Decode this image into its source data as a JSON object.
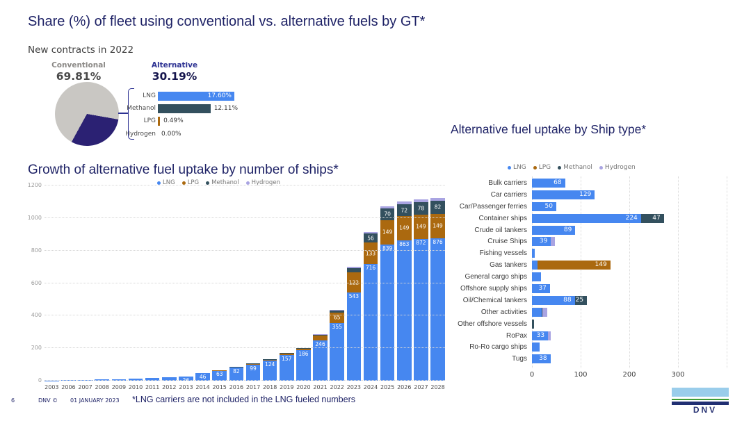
{
  "page": {
    "title": "Share (%) of fleet using conventional vs. alternative fuels by GT*",
    "footer": {
      "page_number": "6",
      "copyright": "DNV ©",
      "date": "01 JANUARY 2023",
      "note": "*LNG carriers are not included in the LNG fueled numbers"
    },
    "logo_text": "DNV"
  },
  "colors": {
    "lng": "#4687f0",
    "lpg": "#ab690f",
    "methanol": "#33505e",
    "hydrogen": "#a9a4e2",
    "conventional": "#c9c7c3",
    "alternative": "#2b2173",
    "heading": "#1e2266"
  },
  "new_contracts": {
    "subtitle": "New contracts in 2022",
    "conventional_label": "Conventional",
    "conventional_value": "69.81%",
    "alternative_label": "Alternative",
    "alternative_value": "30.19%",
    "pie": {
      "conventional_pct": 69.81,
      "alternative_pct": 30.19
    },
    "breakdown": [
      {
        "label": "LNG",
        "value": "17.60%",
        "pct": 17.6,
        "series": "lng",
        "inside": true
      },
      {
        "label": "Methanol",
        "value": "12.11%",
        "pct": 12.11,
        "series": "methanol",
        "inside": false
      },
      {
        "label": "LPG",
        "value": "0.49%",
        "pct": 0.49,
        "series": "lpg",
        "inside": false
      },
      {
        "label": "Hydrogen",
        "value": "0.00%",
        "pct": 0.0,
        "series": "hydrogen",
        "inside": false
      }
    ]
  },
  "chart_data": [
    {
      "id": "growth",
      "type": "bar",
      "stacked": true,
      "orientation": "vertical",
      "title": "Growth of alternative fuel uptake by number of ships*",
      "legend": [
        "LNG",
        "LPG",
        "Methanol",
        "Hydrogen"
      ],
      "legend_position": "top",
      "grid": "horizontal-dotted",
      "ylim": [
        0,
        1200
      ],
      "yticks": [
        0,
        200,
        400,
        600,
        800,
        1000,
        1200
      ],
      "categories": [
        "2003",
        "2006",
        "2007",
        "2008",
        "2009",
        "2010",
        "2011",
        "2012",
        "2013",
        "2014",
        "2015",
        "2016",
        "2017",
        "2018",
        "2019",
        "2020",
        "2021",
        "2022",
        "2023",
        "2024",
        "2025",
        "2026",
        "2027",
        "2028"
      ],
      "series": [
        {
          "name": "LNG",
          "values": [
            2,
            4,
            6,
            8,
            10,
            13,
            16,
            20,
            26,
            46,
            63,
            82,
            99,
            124,
            157,
            186,
            246,
            355,
            543,
            716,
            839,
            863,
            872,
            876
          ],
          "labels": [
            null,
            null,
            null,
            null,
            null,
            null,
            null,
            null,
            "26",
            "46",
            "63",
            "82",
            "99",
            "124",
            "157",
            "186",
            "246",
            "355",
            "543",
            "716",
            "839",
            "863",
            "872",
            "876"
          ]
        },
        {
          "name": "LPG",
          "values": [
            0,
            0,
            0,
            0,
            0,
            0,
            0,
            0,
            0,
            0,
            2,
            3,
            5,
            6,
            8,
            10,
            30,
            65,
            122,
            133,
            149,
            149,
            149,
            149
          ],
          "labels": [
            null,
            null,
            null,
            null,
            null,
            null,
            null,
            null,
            null,
            null,
            null,
            null,
            null,
            null,
            null,
            null,
            null,
            "65",
            "122",
            "133",
            "149",
            "149",
            "149",
            "149"
          ]
        },
        {
          "name": "Methanol",
          "values": [
            0,
            0,
            0,
            0,
            0,
            0,
            0,
            0,
            0,
            0,
            0,
            2,
            3,
            3,
            4,
            4,
            8,
            14,
            28,
            56,
            70,
            72,
            78,
            82
          ],
          "labels": [
            null,
            null,
            null,
            null,
            null,
            null,
            null,
            null,
            null,
            null,
            null,
            null,
            null,
            null,
            null,
            null,
            null,
            null,
            null,
            "56",
            "70",
            "72",
            "78",
            "82"
          ]
        },
        {
          "name": "Hydrogen",
          "values": [
            0,
            0,
            0,
            0,
            0,
            0,
            0,
            0,
            0,
            0,
            0,
            0,
            0,
            0,
            0,
            0,
            2,
            3,
            6,
            10,
            14,
            16,
            16,
            18
          ],
          "labels": [
            null,
            null,
            null,
            null,
            null,
            null,
            null,
            null,
            null,
            null,
            null,
            null,
            null,
            null,
            null,
            null,
            null,
            null,
            null,
            null,
            null,
            null,
            null,
            null
          ]
        }
      ]
    },
    {
      "id": "shiptype",
      "type": "bar",
      "stacked": true,
      "orientation": "horizontal",
      "title": "Alternative fuel uptake by Ship type*",
      "legend": [
        "LNG",
        "LPG",
        "Methanol",
        "Hydrogen"
      ],
      "legend_position": "top",
      "grid": "vertical-dotted",
      "xlim": [
        0,
        420
      ],
      "xticks": [
        0,
        100,
        200,
        300
      ],
      "categories": [
        "Bulk carriers",
        "Car carriers",
        "Car/Passenger ferries",
        "Container ships",
        "Crude oil tankers",
        "Cruise Ships",
        "Fishing vessels",
        "Gas tankers",
        "General cargo ships",
        "Offshore supply ships",
        "Oil/Chemical tankers",
        "Other activities",
        "Other offshore vessels",
        "RoPax",
        "Ro-Ro cargo ships",
        "Tugs"
      ],
      "series": [
        {
          "name": "LNG",
          "values": [
            68,
            129,
            50,
            224,
            89,
            39,
            5,
            12,
            18,
            37,
            88,
            20,
            0,
            33,
            15,
            38
          ],
          "labels": [
            "68",
            "129",
            "50",
            "224",
            "89",
            "39",
            null,
            null,
            null,
            "37",
            "88",
            null,
            null,
            "33",
            null,
            "38"
          ]
        },
        {
          "name": "LPG",
          "values": [
            0,
            0,
            0,
            0,
            0,
            0,
            0,
            149,
            0,
            0,
            0,
            0,
            0,
            0,
            0,
            0
          ],
          "labels": [
            null,
            null,
            null,
            null,
            null,
            null,
            null,
            "149",
            null,
            null,
            null,
            null,
            null,
            null,
            null,
            null
          ]
        },
        {
          "name": "Methanol",
          "values": [
            0,
            0,
            0,
            47,
            0,
            0,
            0,
            0,
            0,
            0,
            25,
            2,
            4,
            0,
            0,
            0
          ],
          "labels": [
            null,
            null,
            null,
            "47",
            null,
            null,
            null,
            null,
            null,
            null,
            "25",
            null,
            null,
            null,
            null,
            null
          ]
        },
        {
          "name": "Hydrogen",
          "values": [
            0,
            0,
            0,
            0,
            0,
            8,
            0,
            0,
            0,
            0,
            0,
            10,
            0,
            6,
            0,
            0
          ],
          "labels": [
            null,
            null,
            null,
            null,
            null,
            null,
            null,
            null,
            null,
            null,
            null,
            null,
            null,
            null,
            null,
            null
          ]
        }
      ]
    }
  ]
}
